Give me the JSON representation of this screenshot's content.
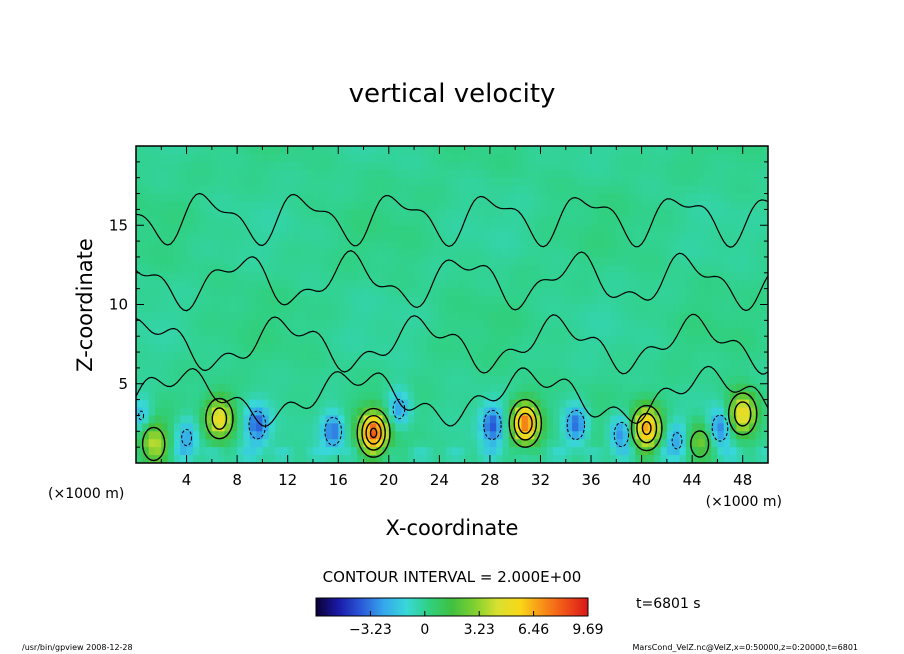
{
  "chart_data": {
    "type": "heatmap",
    "title": "vertical velocity",
    "xlabel": "X-coordinate",
    "ylabel": "Z-coordinate",
    "x_unit_left": "(×1000 m)",
    "x_unit_right": "(×1000 m)",
    "xlim": [
      0,
      50
    ],
    "ylim": [
      0,
      20
    ],
    "x_ticks": [
      4,
      8,
      12,
      16,
      20,
      24,
      28,
      32,
      36,
      40,
      44,
      48
    ],
    "y_ticks": [
      5,
      10,
      15
    ],
    "contour_interval_text": "CONTOUR INTERVAL = 2.000E+00",
    "time_text": "t=6801 s",
    "colorbar": {
      "range": [
        -6.46,
        9.69
      ],
      "tick_values": [
        -3.23,
        0,
        3.23,
        6.46,
        9.69
      ],
      "tick_labels": [
        "−3.23",
        "0",
        "3.23",
        "6.46",
        "9.69"
      ],
      "colors": [
        "#0b0033",
        "#1a1aa8",
        "#2a5ad8",
        "#35a8ec",
        "#38d8d8",
        "#30d080",
        "#40c040",
        "#80d030",
        "#d8e030",
        "#f8d818",
        "#f89018",
        "#f05018",
        "#d81818"
      ]
    },
    "updrafts": [
      {
        "x": 1.4,
        "z": 1.2,
        "amp": 3.8
      },
      {
        "x": 6.6,
        "z": 2.8,
        "amp": 5.2
      },
      {
        "x": 18.8,
        "z": 1.9,
        "amp": 8.0
      },
      {
        "x": 30.8,
        "z": 2.5,
        "amp": 7.6
      },
      {
        "x": 40.4,
        "z": 2.2,
        "amp": 6.6
      },
      {
        "x": 44.6,
        "z": 1.2,
        "amp": 3.0
      },
      {
        "x": 48.0,
        "z": 3.1,
        "amp": 5.6
      }
    ],
    "downdrafts": [
      {
        "x": 0.4,
        "z": 3.0,
        "amp": -2.0
      },
      {
        "x": 4.0,
        "z": 1.6,
        "amp": -2.4
      },
      {
        "x": 9.6,
        "z": 2.4,
        "amp": -3.4
      },
      {
        "x": 15.6,
        "z": 2.0,
        "amp": -3.4
      },
      {
        "x": 20.8,
        "z": 3.4,
        "amp": -2.6
      },
      {
        "x": 28.2,
        "z": 2.4,
        "amp": -3.6
      },
      {
        "x": 34.8,
        "z": 2.4,
        "amp": -3.6
      },
      {
        "x": 38.4,
        "z": 1.8,
        "amp": -3.0
      },
      {
        "x": 42.8,
        "z": 1.4,
        "amp": -2.4
      },
      {
        "x": 46.2,
        "z": 2.2,
        "amp": -3.2
      }
    ]
  },
  "footer": {
    "left_text": "/usr/bin/gpview   2008-12-28",
    "right_text": "MarsCond_VelZ.nc@VelZ,x=0:50000,z=0:20000,t=6801"
  },
  "colors": {
    "background_field": "#3fd46a",
    "frame": "#000000"
  }
}
